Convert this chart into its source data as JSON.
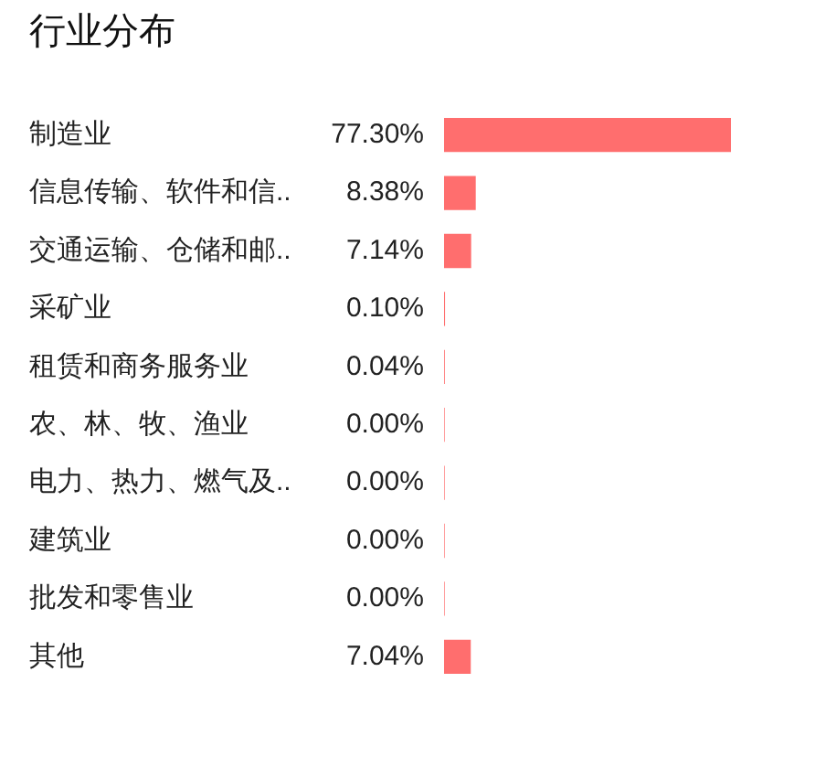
{
  "chart_data": {
    "type": "bar",
    "orientation": "horizontal",
    "title": "行业分布",
    "categories": [
      "制造业",
      "信息传输、软件和信..",
      "交通运输、仓储和邮..",
      "采矿业",
      "租赁和商务服务业",
      "农、林、牧、渔业",
      "电力、热力、燃气及..",
      "建筑业",
      "批发和零售业",
      "其他"
    ],
    "values": [
      77.3,
      8.38,
      7.14,
      0.1,
      0.04,
      0.0,
      0.0,
      0.0,
      0.0,
      7.04
    ],
    "value_labels": [
      "77.30%",
      "8.38%",
      "7.14%",
      "0.10%",
      "0.04%",
      "0.00%",
      "0.00%",
      "0.00%",
      "0.00%",
      "7.04%"
    ],
    "color": "#ff6e6e",
    "grid": false,
    "legend": false,
    "tick_labels": "y"
  }
}
